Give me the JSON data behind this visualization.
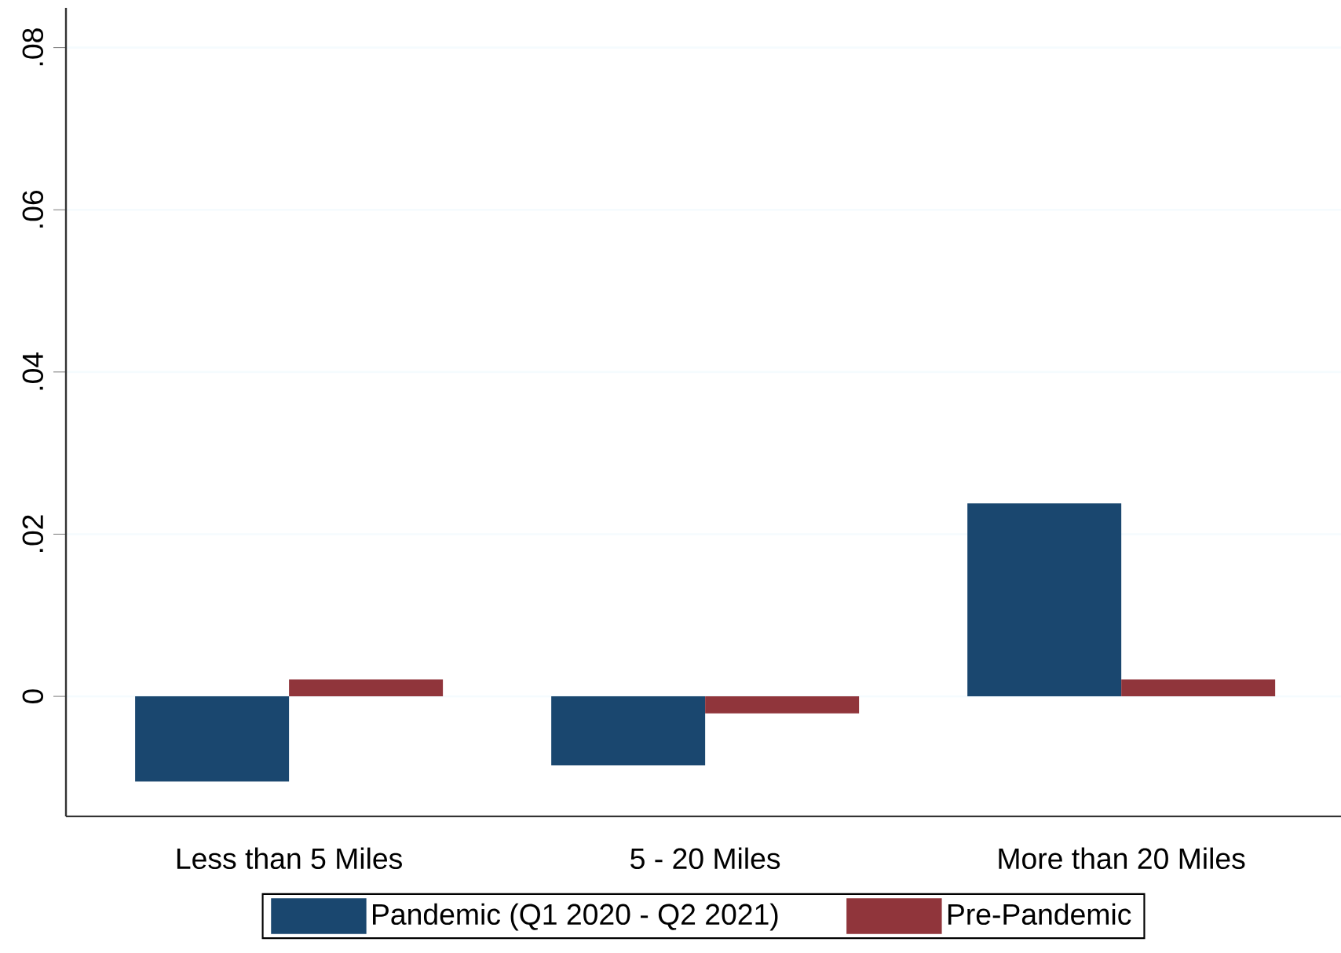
{
  "chart_data": {
    "type": "bar",
    "categories": [
      "Less than 5 Miles",
      "5 - 20 Miles",
      "More than 20 Miles"
    ],
    "series": [
      {
        "name": "Pandemic (Q1 2020 - Q2 2021)",
        "color": "#1a476f",
        "values": [
          -0.0105,
          -0.0085,
          0.0238
        ]
      },
      {
        "name": "Pre-Pandemic",
        "color": "#90353b",
        "values": [
          0.0021,
          -0.0021,
          0.0021
        ]
      }
    ],
    "ylim": [
      -0.0148,
      0.0849
    ],
    "yticks": [
      {
        "value": 0,
        "label": "0"
      },
      {
        "value": 0.02,
        "label": ".02"
      },
      {
        "value": 0.04,
        "label": ".04"
      },
      {
        "value": 0.06,
        "label": ".06"
      },
      {
        "value": 0.08,
        "label": ".08"
      }
    ],
    "grid": "y",
    "legend": "bottom"
  }
}
